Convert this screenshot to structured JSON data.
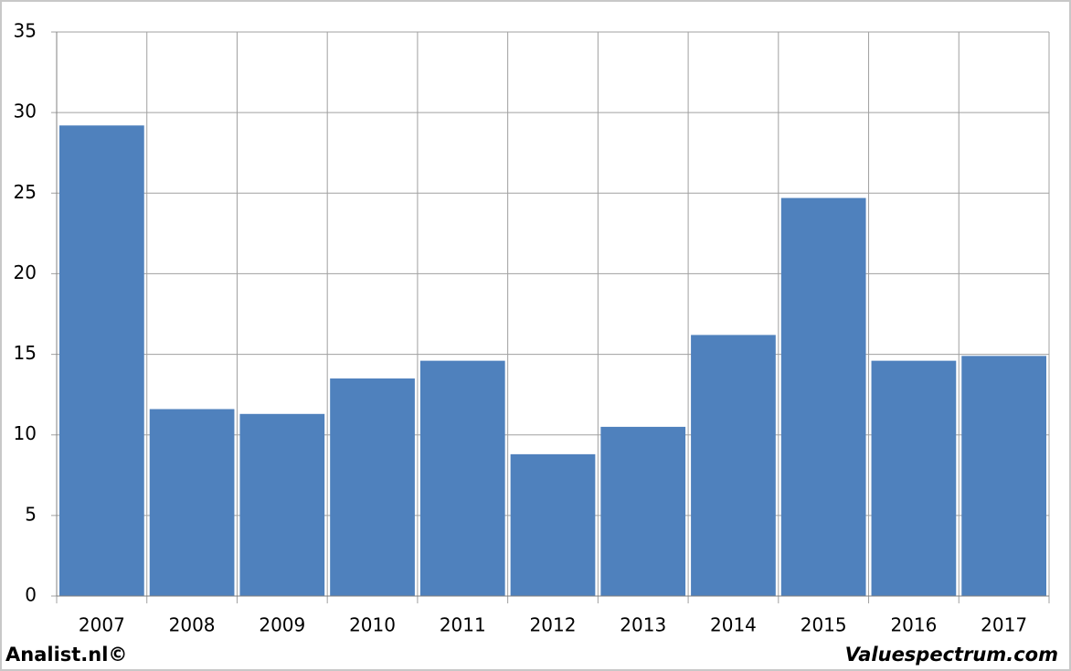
{
  "chart_data": {
    "type": "bar",
    "categories": [
      "2007",
      "2008",
      "2009",
      "2010",
      "2011",
      "2012",
      "2013",
      "2014",
      "2015",
      "2016",
      "2017"
    ],
    "values": [
      29.2,
      11.6,
      11.3,
      13.5,
      14.6,
      8.8,
      10.5,
      16.2,
      24.7,
      14.6,
      14.9
    ],
    "color": "#4f81bd",
    "ylim": [
      0,
      35
    ],
    "yticks": [
      0,
      5,
      10,
      15,
      20,
      25,
      30,
      35
    ],
    "grid": true,
    "credit": "Analist.nl©",
    "source": "Valuespectrum.com"
  }
}
